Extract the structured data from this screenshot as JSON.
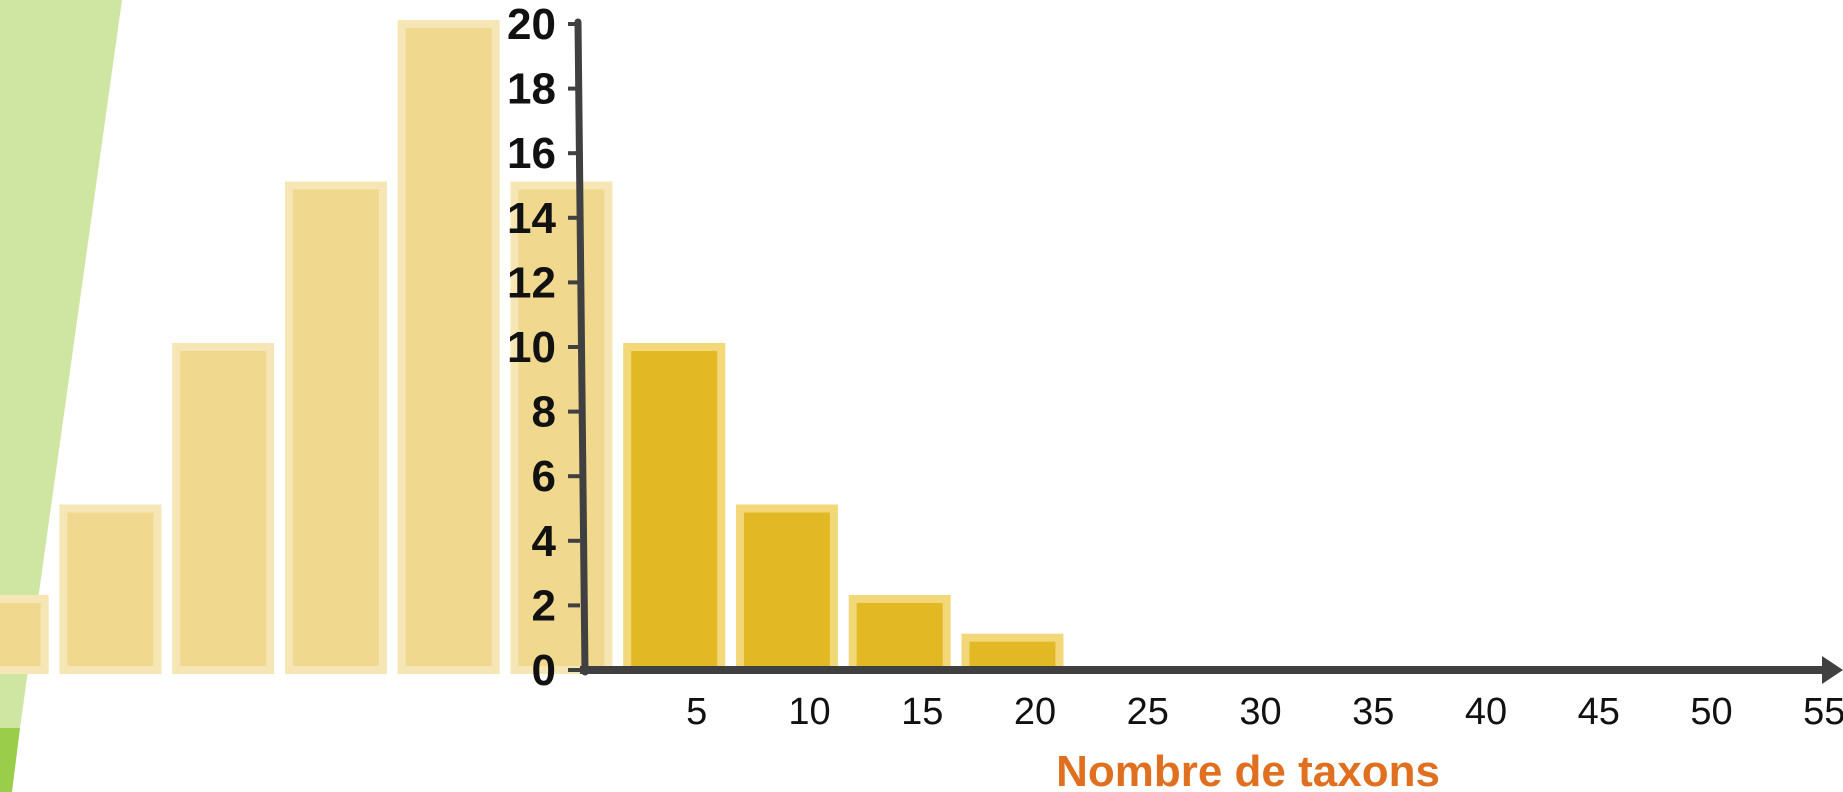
{
  "chart_data": {
    "type": "bar",
    "title": "",
    "xlabel": "Nombre de taxons",
    "ylabel": "",
    "ylim": [
      0,
      20
    ],
    "xlim": [
      0,
      57
    ],
    "grid": false,
    "y_ticks": [
      "0",
      "2",
      "4",
      "6",
      "8",
      "10",
      "12",
      "14",
      "16",
      "18",
      "20"
    ],
    "x_ticks": [
      "5",
      "10",
      "15",
      "20",
      "25",
      "30",
      "35",
      "40",
      "45",
      "50",
      "55"
    ],
    "bars": [
      {
        "x": 4,
        "value": 10
      },
      {
        "x": 9,
        "value": 5
      },
      {
        "x": 14,
        "value": 2.2
      },
      {
        "x": 19,
        "value": 1
      }
    ],
    "faded_bars": [
      {
        "x": -26,
        "value": 2.2
      },
      {
        "x": -21,
        "value": 5
      },
      {
        "x": -16,
        "value": 10
      },
      {
        "x": -11,
        "value": 15
      },
      {
        "x": -6,
        "value": 20
      },
      {
        "x": -1,
        "value": 15
      }
    ]
  },
  "colors": {
    "bar": "#e2b825",
    "bar_outline": "#f2d878",
    "faded_bar": "#f0d98e",
    "faded_outline": "#f6e6b5",
    "axis": "#404040",
    "xlabel": "#e07020",
    "green_light": "#cfe6a3",
    "green_dark": "#9acd4a"
  }
}
